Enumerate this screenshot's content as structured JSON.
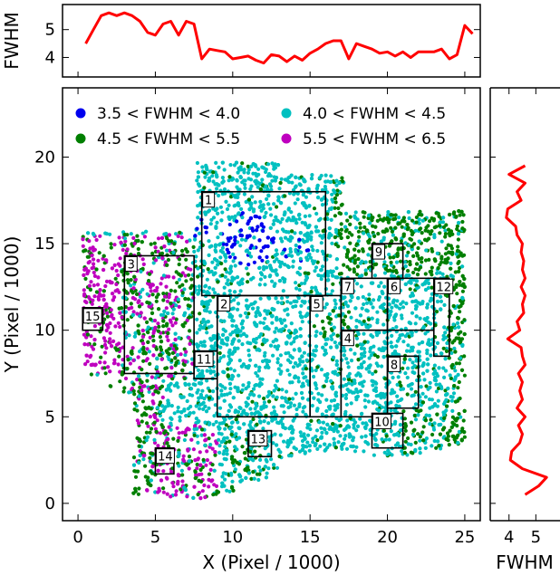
{
  "chart_data": {
    "type": "scatter",
    "main": {
      "xlabel": "X (Pixel / 1000)",
      "ylabel": "Y (Pixel / 1000)",
      "xlim": [
        -1,
        26
      ],
      "ylim": [
        -1,
        24
      ],
      "xticks": [
        0,
        5,
        10,
        15,
        20,
        25
      ],
      "yticks": [
        0,
        5,
        10,
        15,
        20
      ],
      "legend_position": "top",
      "legend": [
        {
          "label": "3.5 < FWHM < 4.0",
          "color": "#0000ee"
        },
        {
          "label": "4.0 < FWHM < 4.5",
          "color": "#00c0c0"
        },
        {
          "label": "4.5 < FWHM < 5.5",
          "color": "#007f00"
        },
        {
          "label": "5.5 < FWHM < 6.5",
          "color": "#bf00bf"
        }
      ],
      "boxes": [
        {
          "id": "1",
          "x0": 8,
          "x1": 16,
          "y0": 12,
          "y1": 18
        },
        {
          "id": "2",
          "x0": 9,
          "x1": 15,
          "y0": 5,
          "y1": 12
        },
        {
          "id": "3",
          "x0": 3,
          "x1": 7.5,
          "y0": 7.5,
          "y1": 14.3
        },
        {
          "id": "4",
          "x0": 17,
          "x1": 20,
          "y0": 5,
          "y1": 10
        },
        {
          "id": "5",
          "x0": 15,
          "x1": 17,
          "y0": 5,
          "y1": 12
        },
        {
          "id": "6",
          "x0": 20,
          "x1": 23,
          "y0": 10,
          "y1": 13
        },
        {
          "id": "7",
          "x0": 17,
          "x1": 20,
          "y0": 10,
          "y1": 13
        },
        {
          "id": "8",
          "x0": 20,
          "x1": 22,
          "y0": 5.5,
          "y1": 8.5
        },
        {
          "id": "9",
          "x0": 19,
          "x1": 21,
          "y0": 13,
          "y1": 15
        },
        {
          "id": "10",
          "x0": 19,
          "x1": 21,
          "y0": 3.2,
          "y1": 5.2
        },
        {
          "id": "11",
          "x0": 7.5,
          "x1": 9,
          "y0": 7.2,
          "y1": 8.8
        },
        {
          "id": "12",
          "x0": 23,
          "x1": 24,
          "y0": 8.5,
          "y1": 13
        },
        {
          "id": "13",
          "x0": 11,
          "x1": 12.5,
          "y0": 2.7,
          "y1": 4.2
        },
        {
          "id": "14",
          "x0": 5,
          "x1": 6.2,
          "y0": 1.7,
          "y1": 3.2
        },
        {
          "id": "15",
          "x0": 0.3,
          "x1": 1.6,
          "y0": 10,
          "y1": 11.3
        }
      ]
    },
    "top": {
      "ylabel": "FWHM",
      "yticks": [
        4,
        5
      ],
      "ylim": [
        3.3,
        5.9
      ],
      "color": "#ff0000",
      "x": [
        0.5,
        1,
        1.5,
        2,
        2.5,
        3,
        3.5,
        4,
        4.5,
        5,
        5.5,
        6,
        6.5,
        7,
        7.5,
        8,
        8.5,
        9,
        9.5,
        10,
        10.5,
        11,
        11.5,
        12,
        12.5,
        13,
        13.5,
        14,
        14.5,
        15,
        15.5,
        16,
        16.5,
        17,
        17.5,
        18,
        18.5,
        19,
        19.5,
        20,
        20.5,
        21,
        21.5,
        22,
        22.5,
        23,
        23.5,
        24,
        24.5,
        25,
        25.5
      ],
      "y": [
        4.5,
        5.0,
        5.5,
        5.6,
        5.5,
        5.6,
        5.5,
        5.3,
        4.9,
        4.8,
        5.2,
        5.3,
        4.8,
        5.3,
        5.2,
        3.95,
        4.3,
        4.25,
        4.2,
        3.95,
        4.0,
        4.05,
        3.9,
        3.8,
        4.1,
        4.05,
        3.85,
        4.05,
        3.9,
        4.15,
        4.3,
        4.5,
        4.6,
        4.6,
        3.95,
        4.5,
        4.4,
        4.3,
        4.15,
        4.2,
        4.05,
        4.2,
        4.0,
        4.2,
        4.2,
        4.2,
        4.3,
        3.95,
        4.1,
        5.15,
        4.85
      ]
    },
    "right": {
      "xlabel": "FWHM",
      "xticks": [
        4,
        5
      ],
      "xlim": [
        3.3,
        5.9
      ],
      "color": "#ff0000",
      "y": [
        0.5,
        1,
        1.5,
        2,
        2.5,
        3,
        3.5,
        4,
        4.5,
        5,
        5.5,
        6,
        6.5,
        7,
        7.5,
        8,
        8.5,
        9,
        9.5,
        10,
        10.5,
        11,
        11.5,
        12,
        12.5,
        13,
        13.5,
        14,
        14.5,
        15,
        15.5,
        16,
        16.5,
        17,
        17.5,
        18,
        18.5,
        19,
        19.5
      ],
      "x": [
        4.6,
        5.1,
        5.4,
        4.5,
        4.05,
        4.1,
        4.4,
        4.5,
        4.35,
        4.6,
        4.3,
        4.5,
        4.4,
        4.5,
        4.35,
        4.6,
        4.5,
        4.45,
        3.95,
        4.4,
        4.3,
        4.55,
        4.5,
        4.6,
        4.45,
        4.6,
        4.5,
        4.55,
        4.45,
        4.5,
        4.3,
        4.25,
        3.9,
        3.95,
        4.45,
        4.3,
        4.6,
        4.0,
        4.6
      ]
    }
  }
}
